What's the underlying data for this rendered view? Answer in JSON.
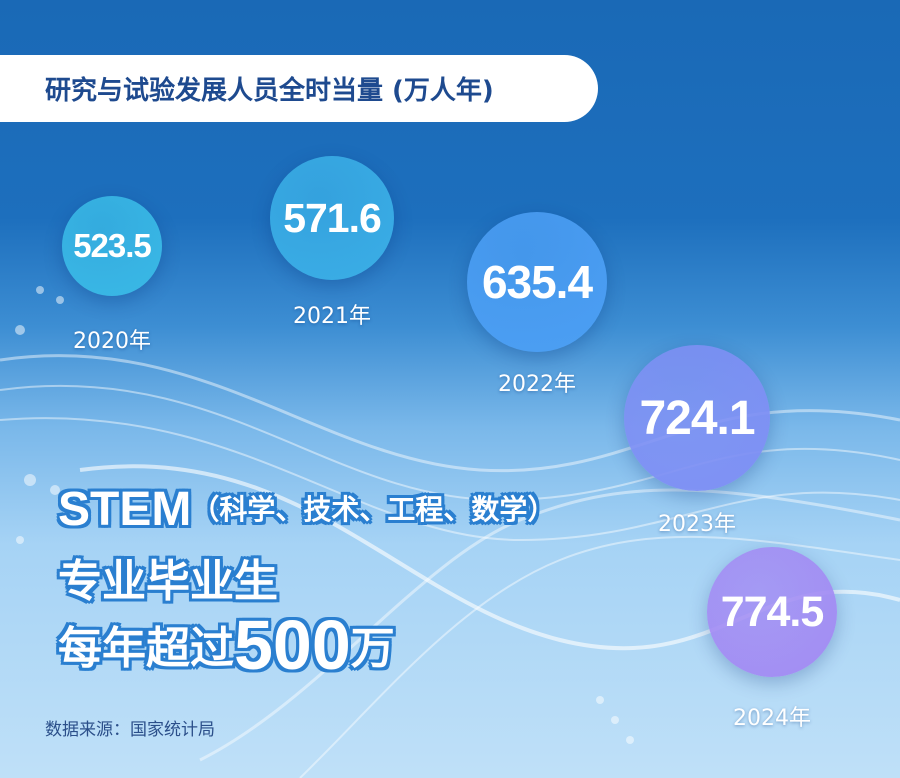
{
  "title": "研究与试验发展人员全时当量 (万人年)",
  "chart_data": {
    "type": "bubble",
    "title": "研究与试验发展人员全时当量 (万人年)",
    "categories": [
      "2020年",
      "2021年",
      "2022年",
      "2023年",
      "2024年"
    ],
    "values": [
      523.5,
      571.6,
      635.4,
      724.1,
      774.5
    ],
    "value_labels": [
      "523.5",
      "571.6",
      "635.4",
      "724.1",
      "774.5"
    ],
    "colors": [
      "#39b9e6",
      "#3aaee6",
      "#4b9ef4",
      "#7e8ff4",
      "#a28bf3"
    ]
  },
  "headline": {
    "line1_main": "STEM",
    "line1_sub": "（科学、技术、工程、数学）",
    "line2": "专业毕业生",
    "line3_prefix": "每年超过",
    "line3_number": "500",
    "line3_unit": "万"
  },
  "source": "数据来源：国家统计局"
}
